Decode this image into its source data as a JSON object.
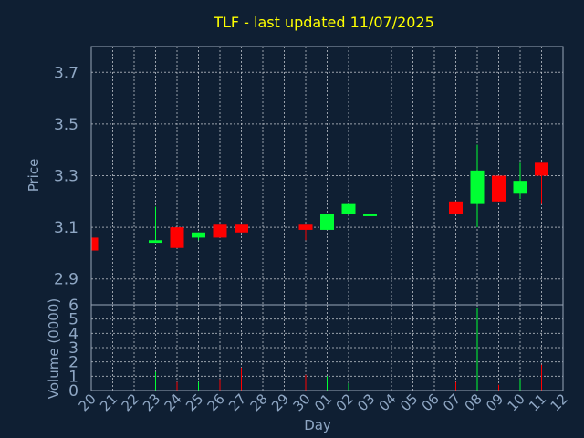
{
  "chart_data": [
    {
      "type": "candlestick",
      "title": "TLF - last updated 11/07/2025",
      "ylabel": "Price",
      "ylim": [
        2.8,
        3.8
      ],
      "yticks": [
        "2.9",
        "3.1",
        "3.3",
        "3.5",
        "3.7"
      ],
      "grid": true,
      "up_color": "#00ff33",
      "down_color": "#ff0000",
      "candles": [
        {
          "day": "20",
          "open": 3.06,
          "close": 3.01,
          "high": 3.06,
          "low": 3.01
        },
        {
          "day": "23",
          "open": 3.04,
          "close": 3.05,
          "high": 3.18,
          "low": 3.04
        },
        {
          "day": "24",
          "open": 3.1,
          "close": 3.02,
          "high": 3.1,
          "low": 3.02
        },
        {
          "day": "25",
          "open": 3.06,
          "close": 3.08,
          "high": 3.08,
          "low": 3.05
        },
        {
          "day": "26",
          "open": 3.11,
          "close": 3.06,
          "high": 3.11,
          "low": 3.06
        },
        {
          "day": "27",
          "open": 3.11,
          "close": 3.08,
          "high": 3.11,
          "low": 3.08
        },
        {
          "day": "30",
          "open": 3.11,
          "close": 3.09,
          "high": 3.11,
          "low": 3.05
        },
        {
          "day": "01",
          "open": 3.09,
          "close": 3.15,
          "high": 3.15,
          "low": 3.09
        },
        {
          "day": "02",
          "open": 3.15,
          "close": 3.19,
          "high": 3.19,
          "low": 3.15
        },
        {
          "day": "03",
          "open": 3.15,
          "close": 3.15,
          "high": 3.15,
          "low": 3.14
        },
        {
          "day": "07",
          "open": 3.2,
          "close": 3.15,
          "high": 3.2,
          "low": 3.15
        },
        {
          "day": "08",
          "open": 3.19,
          "close": 3.32,
          "high": 3.42,
          "low": 3.1
        },
        {
          "day": "09",
          "open": 3.3,
          "close": 3.2,
          "high": 3.3,
          "low": 3.2
        },
        {
          "day": "10",
          "open": 3.23,
          "close": 3.28,
          "high": 3.35,
          "low": 3.21
        },
        {
          "day": "11",
          "open": 3.35,
          "close": 3.3,
          "high": 3.35,
          "low": 3.19
        }
      ]
    },
    {
      "type": "bar",
      "ylabel": "Volume (0000)",
      "xlabel": "Day",
      "ylim": [
        0,
        6
      ],
      "yticks": [
        "0",
        "1",
        "2",
        "3",
        "4",
        "5",
        "6"
      ],
      "categories": [
        "20",
        "21",
        "22",
        "23",
        "24",
        "25",
        "26",
        "27",
        "28",
        "29",
        "30",
        "01",
        "02",
        "03",
        "04",
        "05",
        "06",
        "07",
        "08",
        "09",
        "10",
        "11",
        "12"
      ],
      "volumes": [
        {
          "day": "23",
          "value": 1.3,
          "direction": "up"
        },
        {
          "day": "24",
          "value": 0.6,
          "direction": "down"
        },
        {
          "day": "25",
          "value": 0.6,
          "direction": "up"
        },
        {
          "day": "26",
          "value": 0.8,
          "direction": "down"
        },
        {
          "day": "27",
          "value": 1.6,
          "direction": "down"
        },
        {
          "day": "30",
          "value": 1.1,
          "direction": "down"
        },
        {
          "day": "01",
          "value": 1.0,
          "direction": "up"
        },
        {
          "day": "02",
          "value": 0.5,
          "direction": "up"
        },
        {
          "day": "03",
          "value": 0.2,
          "direction": "up"
        },
        {
          "day": "07",
          "value": 0.6,
          "direction": "down"
        },
        {
          "day": "08",
          "value": 5.8,
          "direction": "up"
        },
        {
          "day": "09",
          "value": 0.4,
          "direction": "down"
        },
        {
          "day": "10",
          "value": 0.8,
          "direction": "up"
        },
        {
          "day": "11",
          "value": 1.8,
          "direction": "down"
        }
      ]
    }
  ]
}
